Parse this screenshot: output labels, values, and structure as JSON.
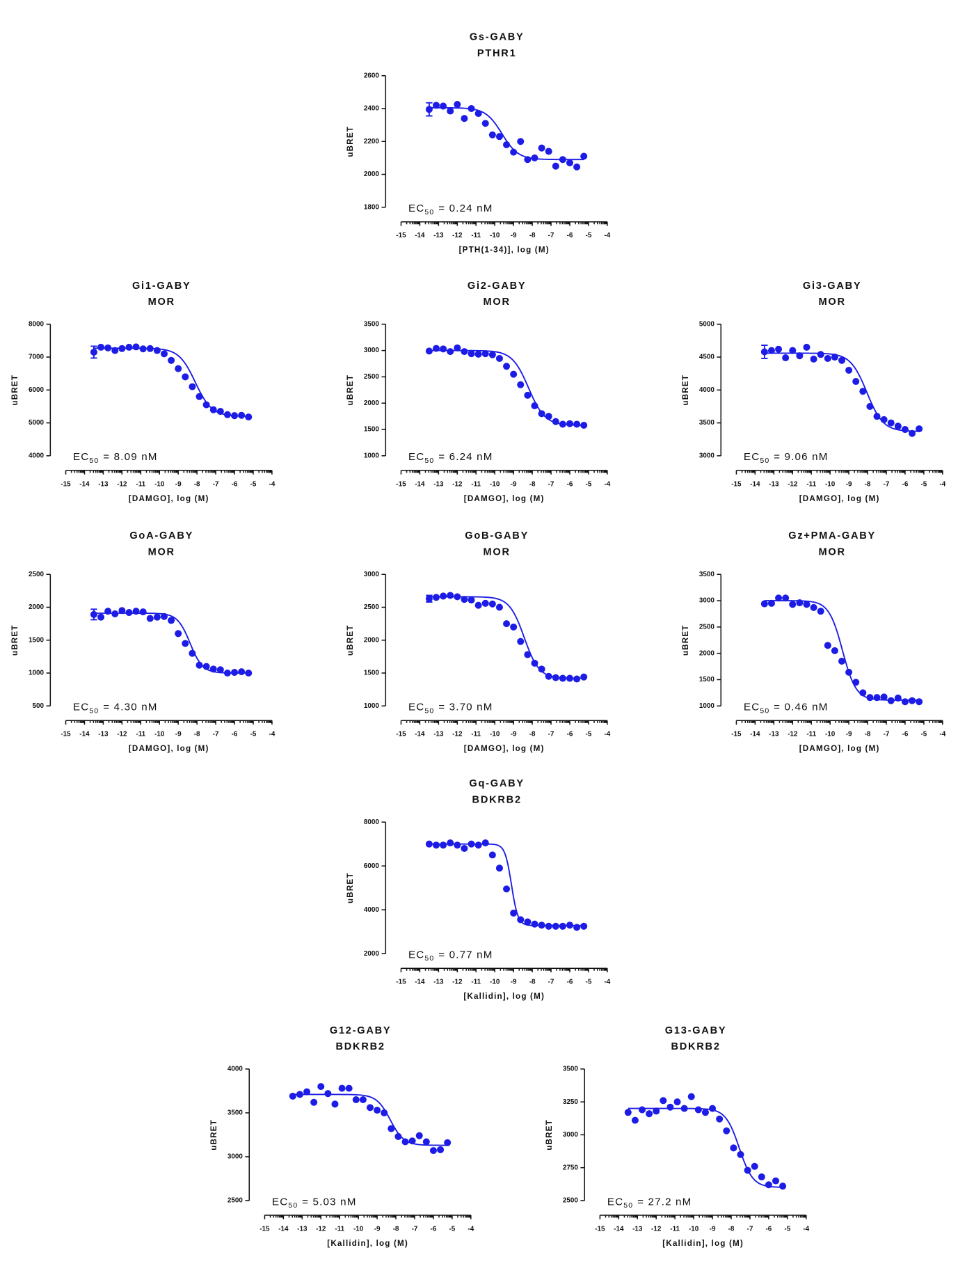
{
  "chart_data": [
    {
      "type": "scatter",
      "title": "Gs-GABY",
      "subtitle": "PTHR1",
      "xlabel": "[PTH(1-34)], log (M)",
      "ylabel": "uBRET",
      "annotation": {
        "main": "EC",
        "sub": "50",
        "rest": "= 0.24 nM"
      },
      "x": [
        -13.5,
        -13.125,
        -12.75,
        -12.375,
        -12,
        -11.625,
        -11.25,
        -10.875,
        -10.5,
        -10.125,
        -9.75,
        -9.375,
        -9,
        -8.625,
        -8.25,
        -7.875,
        -7.5,
        -7.125,
        -6.75,
        -6.375,
        -6,
        -5.625,
        -5.25
      ],
      "values": [
        2395,
        2420,
        2415,
        2385,
        2425,
        2340,
        2400,
        2370,
        2310,
        2240,
        2230,
        2180,
        2135,
        2200,
        2090,
        2100,
        2160,
        2140,
        2050,
        2090,
        2070,
        2045,
        2110
      ],
      "errors": [
        40,
        null,
        null,
        null,
        null,
        null,
        null,
        null,
        null,
        null,
        null,
        null,
        null,
        null,
        null,
        null,
        null,
        null,
        null,
        null,
        null,
        null,
        null
      ],
      "fit": {
        "top": 2405,
        "bottom": 2090,
        "log_ec50": -9.62,
        "hill_slope": 1
      },
      "color": "#1c1ce6",
      "xlim": [
        -15,
        -4
      ],
      "xticks": [
        -15,
        -14,
        -13,
        -12,
        -11,
        -10,
        -9,
        -8,
        -7,
        -6,
        -5,
        -4
      ],
      "ylim": [
        1800,
        2600
      ],
      "yticks": [
        1800,
        2000,
        2200,
        2400,
        2600
      ]
    },
    {
      "type": "scatter",
      "title": "Gi1-GABY",
      "subtitle": "MOR",
      "xlabel": "[DAMGO], log (M)",
      "ylabel": "uBRET",
      "annotation": {
        "main": "EC",
        "sub": "50",
        "rest": "= 8.09 nM"
      },
      "x": [
        -13.5,
        -13.125,
        -12.75,
        -12.375,
        -12,
        -11.625,
        -11.25,
        -10.875,
        -10.5,
        -10.125,
        -9.75,
        -9.375,
        -9,
        -8.625,
        -8.25,
        -7.875,
        -7.5,
        -7.125,
        -6.75,
        -6.375,
        -6,
        -5.625,
        -5.25
      ],
      "values": [
        7150,
        7300,
        7280,
        7200,
        7260,
        7300,
        7310,
        7250,
        7260,
        7200,
        7100,
        6900,
        6650,
        6400,
        6100,
        5800,
        5550,
        5400,
        5350,
        5250,
        5220,
        5230,
        5180
      ],
      "errors": [
        180,
        null,
        null,
        null,
        null,
        null,
        null,
        null,
        null,
        null,
        null,
        null,
        null,
        null,
        null,
        null,
        null,
        null,
        null,
        null,
        null,
        null,
        null
      ],
      "fit": {
        "top": 7270,
        "bottom": 5200,
        "log_ec50": -8.09,
        "hill_slope": 1
      },
      "color": "#1c1ce6",
      "xlim": [
        -15,
        -4
      ],
      "xticks": [
        -15,
        -14,
        -13,
        -12,
        -11,
        -10,
        -9,
        -8,
        -7,
        -6,
        -5,
        -4
      ],
      "ylim": [
        4000,
        8000
      ],
      "yticks": [
        4000,
        5000,
        6000,
        7000,
        8000
      ]
    },
    {
      "type": "scatter",
      "title": "Gi2-GABY",
      "subtitle": "MOR",
      "xlabel": "[DAMGO], log (M)",
      "ylabel": "uBRET",
      "annotation": {
        "main": "EC",
        "sub": "50",
        "rest": "= 6.24 nM"
      },
      "x": [
        -13.5,
        -13.125,
        -12.75,
        -12.375,
        -12,
        -11.625,
        -11.25,
        -10.875,
        -10.5,
        -10.125,
        -9.75,
        -9.375,
        -9,
        -8.625,
        -8.25,
        -7.875,
        -7.5,
        -7.125,
        -6.75,
        -6.375,
        -6,
        -5.625,
        -5.25
      ],
      "values": [
        2990,
        3040,
        3030,
        2980,
        3050,
        2980,
        2940,
        2930,
        2940,
        2920,
        2850,
        2700,
        2550,
        2350,
        2150,
        1950,
        1800,
        1750,
        1650,
        1600,
        1610,
        1600,
        1580
      ],
      "fit": {
        "top": 3000,
        "bottom": 1580,
        "log_ec50": -8.2,
        "hill_slope": 1
      },
      "color": "#1c1ce6",
      "xlim": [
        -15,
        -4
      ],
      "xticks": [
        -15,
        -14,
        -13,
        -12,
        -11,
        -10,
        -9,
        -8,
        -7,
        -6,
        -5,
        -4
      ],
      "ylim": [
        1000,
        3500
      ],
      "yticks": [
        1000,
        1500,
        2000,
        2500,
        3000,
        3500
      ]
    },
    {
      "type": "scatter",
      "title": "Gi3-GABY",
      "subtitle": "MOR",
      "xlabel": "[DAMGO], log (M)",
      "ylabel": "uBRET",
      "annotation": {
        "main": "EC",
        "sub": "50",
        "rest": "= 9.06 nM"
      },
      "x": [
        -13.5,
        -13.125,
        -12.75,
        -12.375,
        -12,
        -11.625,
        -11.25,
        -10.875,
        -10.5,
        -10.125,
        -9.75,
        -9.375,
        -9,
        -8.625,
        -8.25,
        -7.875,
        -7.5,
        -7.125,
        -6.75,
        -6.375,
        -6,
        -5.625,
        -5.25
      ],
      "values": [
        4580,
        4600,
        4620,
        4490,
        4600,
        4520,
        4650,
        4470,
        4540,
        4480,
        4500,
        4450,
        4300,
        4130,
        3980,
        3750,
        3600,
        3550,
        3500,
        3450,
        3400,
        3340,
        3410
      ],
      "errors": [
        100,
        null,
        null,
        null,
        null,
        null,
        null,
        null,
        null,
        null,
        null,
        null,
        null,
        null,
        null,
        null,
        null,
        null,
        null,
        null,
        null,
        null,
        null
      ],
      "fit": {
        "top": 4560,
        "bottom": 3370,
        "log_ec50": -8.04,
        "hill_slope": 1
      },
      "color": "#1c1ce6",
      "xlim": [
        -15,
        -4
      ],
      "xticks": [
        -15,
        -14,
        -13,
        -12,
        -11,
        -10,
        -9,
        -8,
        -7,
        -6,
        -5,
        -4
      ],
      "ylim": [
        3000,
        5000
      ],
      "yticks": [
        3000,
        3500,
        4000,
        4500,
        5000
      ]
    },
    {
      "type": "scatter",
      "title": "GoA-GABY",
      "subtitle": "MOR",
      "xlabel": "[DAMGO], log (M)",
      "ylabel": "uBRET",
      "annotation": {
        "main": "EC",
        "sub": "50",
        "rest": "= 4.30 nM"
      },
      "x": [
        -13.5,
        -13.125,
        -12.75,
        -12.375,
        -12,
        -11.625,
        -11.25,
        -10.875,
        -10.5,
        -10.125,
        -9.75,
        -9.375,
        -9,
        -8.625,
        -8.25,
        -7.875,
        -7.5,
        -7.125,
        -6.75,
        -6.375,
        -6,
        -5.625,
        -5.25
      ],
      "values": [
        1890,
        1850,
        1940,
        1900,
        1950,
        1920,
        1940,
        1930,
        1830,
        1850,
        1860,
        1800,
        1600,
        1450,
        1300,
        1120,
        1100,
        1060,
        1050,
        1000,
        1010,
        1020,
        1000
      ],
      "errors": [
        80,
        null,
        null,
        null,
        null,
        null,
        null,
        null,
        null,
        null,
        null,
        null,
        null,
        null,
        null,
        null,
        null,
        null,
        null,
        null,
        null,
        null,
        null
      ],
      "fit": {
        "top": 1910,
        "bottom": 1000,
        "log_ec50": -8.37,
        "hill_slope": 1.3
      },
      "color": "#1c1ce6",
      "xlim": [
        -15,
        -4
      ],
      "xticks": [
        -15,
        -14,
        -13,
        -12,
        -11,
        -10,
        -9,
        -8,
        -7,
        -6,
        -5,
        -4
      ],
      "ylim": [
        500,
        2500
      ],
      "yticks": [
        500,
        1000,
        1500,
        2000,
        2500
      ]
    },
    {
      "type": "scatter",
      "title": "GoB-GABY",
      "subtitle": "MOR",
      "xlabel": "[DAMGO], log (M)",
      "ylabel": "uBRET",
      "annotation": {
        "main": "EC",
        "sub": "50",
        "rest": "= 3.70 nM"
      },
      "x": [
        -13.5,
        -13.125,
        -12.75,
        -12.375,
        -12,
        -11.625,
        -11.25,
        -10.875,
        -10.5,
        -10.125,
        -9.75,
        -9.375,
        -9,
        -8.625,
        -8.25,
        -7.875,
        -7.5,
        -7.125,
        -6.75,
        -6.375,
        -6,
        -5.625,
        -5.25
      ],
      "values": [
        2630,
        2650,
        2670,
        2680,
        2660,
        2620,
        2610,
        2530,
        2560,
        2550,
        2500,
        2250,
        2200,
        1980,
        1780,
        1650,
        1560,
        1450,
        1430,
        1420,
        1420,
        1410,
        1440
      ],
      "errors": [
        50,
        null,
        null,
        null,
        null,
        null,
        null,
        null,
        null,
        null,
        null,
        null,
        null,
        null,
        null,
        null,
        null,
        null,
        null,
        null,
        null,
        null,
        null
      ],
      "fit": {
        "top": 2660,
        "bottom": 1420,
        "log_ec50": -8.43,
        "hill_slope": 1.1
      },
      "color": "#1c1ce6",
      "xlim": [
        -15,
        -4
      ],
      "xticks": [
        -15,
        -14,
        -13,
        -12,
        -11,
        -10,
        -9,
        -8,
        -7,
        -6,
        -5,
        -4
      ],
      "ylim": [
        1000,
        3000
      ],
      "yticks": [
        1000,
        1500,
        2000,
        2500,
        3000
      ]
    },
    {
      "type": "scatter",
      "title": "Gz+PMA-GABY",
      "subtitle": "MOR",
      "xlabel": "[DAMGO], log (M)",
      "ylabel": "uBRET",
      "annotation": {
        "main": "EC",
        "sub": "50",
        "rest": "= 0.46 nM"
      },
      "x": [
        -13.5,
        -13.125,
        -12.75,
        -12.375,
        -12,
        -11.625,
        -11.25,
        -10.875,
        -10.5,
        -10.125,
        -9.75,
        -9.375,
        -9,
        -8.625,
        -8.25,
        -7.875,
        -7.5,
        -7.125,
        -6.75,
        -6.375,
        -6,
        -5.625,
        -5.25
      ],
      "values": [
        2940,
        2950,
        3050,
        3050,
        2930,
        2960,
        2930,
        2870,
        2800,
        2150,
        2050,
        1850,
        1640,
        1450,
        1250,
        1160,
        1160,
        1170,
        1100,
        1150,
        1080,
        1100,
        1080
      ],
      "fit": {
        "top": 3000,
        "bottom": 1110,
        "log_ec50": -9.34,
        "hill_slope": 1.2
      },
      "color": "#1c1ce6",
      "xlim": [
        -15,
        -4
      ],
      "xticks": [
        -15,
        -14,
        -13,
        -12,
        -11,
        -10,
        -9,
        -8,
        -7,
        -6,
        -5,
        -4
      ],
      "ylim": [
        1000,
        3500
      ],
      "yticks": [
        1000,
        1500,
        2000,
        2500,
        3000,
        3500
      ]
    },
    {
      "type": "scatter",
      "title": "Gq-GABY",
      "subtitle": "BDKRB2",
      "xlabel": "[Kallidin], log (M)",
      "ylabel": "uBRET",
      "annotation": {
        "main": "EC",
        "sub": "50",
        "rest": "= 0.77 nM"
      },
      "x": [
        -13.5,
        -13.125,
        -12.75,
        -12.375,
        -12,
        -11.625,
        -11.25,
        -10.875,
        -10.5,
        -10.125,
        -9.75,
        -9.375,
        -9,
        -8.625,
        -8.25,
        -7.875,
        -7.5,
        -7.125,
        -6.75,
        -6.375,
        -6,
        -5.625,
        -5.25
      ],
      "values": [
        7000,
        6950,
        6950,
        7050,
        6950,
        6800,
        7000,
        6950,
        7050,
        6500,
        5900,
        4950,
        3850,
        3550,
        3450,
        3350,
        3300,
        3250,
        3250,
        3250,
        3300,
        3200,
        3250
      ],
      "fit": {
        "top": 7000,
        "bottom": 3280,
        "log_ec50": -9.11,
        "hill_slope": 2.5
      },
      "color": "#1c1ce6",
      "xlim": [
        -15,
        -4
      ],
      "xticks": [
        -15,
        -14,
        -13,
        -12,
        -11,
        -10,
        -9,
        -8,
        -7,
        -6,
        -5,
        -4
      ],
      "ylim": [
        2000,
        8000
      ],
      "yticks": [
        2000,
        4000,
        6000,
        8000
      ]
    },
    {
      "type": "scatter",
      "title": "G12-GABY",
      "subtitle": "BDKRB2",
      "xlabel": "[Kallidin], log (M)",
      "ylabel": "uBRET",
      "annotation": {
        "main": "EC",
        "sub": "50",
        "rest": "= 5.03 nM"
      },
      "x": [
        -13.5,
        -13.125,
        -12.75,
        -12.375,
        -12,
        -11.625,
        -11.25,
        -10.875,
        -10.5,
        -10.125,
        -9.75,
        -9.375,
        -9,
        -8.625,
        -8.25,
        -7.875,
        -7.5,
        -7.125,
        -6.75,
        -6.375,
        -6,
        -5.625,
        -5.25
      ],
      "values": [
        3690,
        3710,
        3740,
        3620,
        3800,
        3720,
        3600,
        3780,
        3780,
        3650,
        3650,
        3560,
        3530,
        3500,
        3320,
        3230,
        3170,
        3180,
        3240,
        3170,
        3070,
        3080,
        3160
      ],
      "fit": {
        "top": 3710,
        "bottom": 3130,
        "log_ec50": -8.3,
        "hill_slope": 1.2
      },
      "color": "#1c1ce6",
      "xlim": [
        -15,
        -4
      ],
      "xticks": [
        -15,
        -14,
        -13,
        -12,
        -11,
        -10,
        -9,
        -8,
        -7,
        -6,
        -5,
        -4
      ],
      "ylim": [
        2500,
        4000
      ],
      "yticks": [
        2500,
        3000,
        3500,
        4000
      ]
    },
    {
      "type": "scatter",
      "title": "G13-GABY",
      "subtitle": "BDKRB2",
      "xlabel": "[Kallidin], log (M)",
      "ylabel": "uBRET",
      "annotation": {
        "main": "EC",
        "sub": "50",
        "rest": "= 27.2 nM"
      },
      "x": [
        -13.5,
        -13.125,
        -12.75,
        -12.375,
        -12,
        -11.625,
        -11.25,
        -10.875,
        -10.5,
        -10.125,
        -9.75,
        -9.375,
        -9,
        -8.625,
        -8.25,
        -7.875,
        -7.5,
        -7.125,
        -6.75,
        -6.375,
        -6,
        -5.625,
        -5.25
      ],
      "values": [
        3170,
        3110,
        3190,
        3160,
        3180,
        3260,
        3210,
        3250,
        3200,
        3290,
        3190,
        3170,
        3200,
        3120,
        3030,
        2900,
        2850,
        2730,
        2760,
        2680,
        2620,
        2650,
        2610
      ],
      "fit": {
        "top": 3200,
        "bottom": 2600,
        "log_ec50": -7.57,
        "hill_slope": 1.2
      },
      "color": "#1c1ce6",
      "xlim": [
        -15,
        -4
      ],
      "xticks": [
        -15,
        -14,
        -13,
        -12,
        -11,
        -10,
        -9,
        -8,
        -7,
        -6,
        -5,
        -4
      ],
      "ylim": [
        2500,
        3500
      ],
      "yticks": [
        2500,
        2750,
        3000,
        3250,
        3500
      ]
    }
  ]
}
